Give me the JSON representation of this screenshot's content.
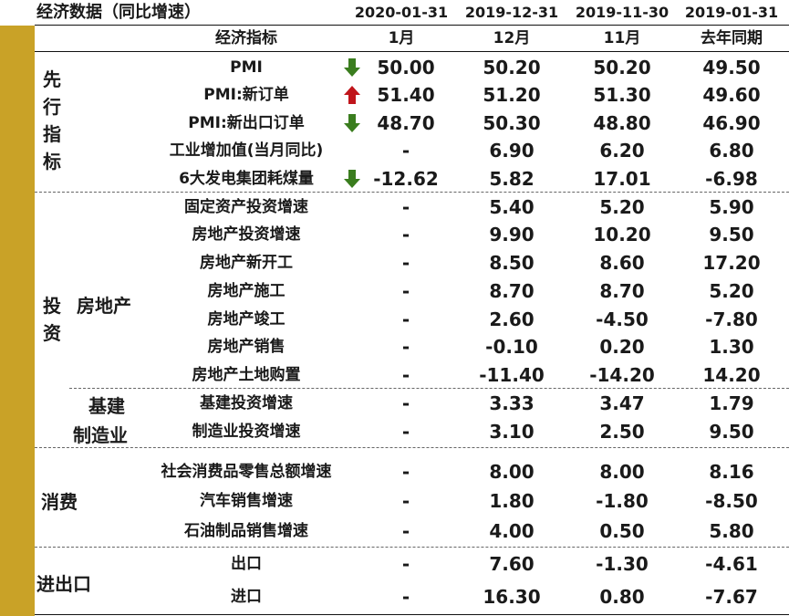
{
  "title": "经济数据（同比增速）",
  "dates": [
    "2020-01-31",
    "2019-12-31",
    "2019-11-30",
    "2019-01-31"
  ],
  "headers": {
    "indicator": "经济指标",
    "c1": "1月",
    "c2": "12月",
    "c3": "11月",
    "c4": "去年同期"
  },
  "categories": {
    "leading": [
      "先",
      "行",
      "指",
      "标"
    ],
    "investment": [
      "投",
      "资"
    ],
    "real_estate": "房地产",
    "infra_1": "基建",
    "infra_2": "制造业",
    "consumption": "消费",
    "trade": "进出口"
  },
  "colors": {
    "gold": "#c9a227",
    "arrow_down": "#3a7d1e",
    "arrow_up": "#c0151b"
  },
  "rows": [
    {
      "name": "PMI",
      "arrow": "down",
      "c1": "50.00",
      "c2": "50.20",
      "c3": "50.20",
      "c4": "49.50"
    },
    {
      "name": "PMI:新订单",
      "arrow": "up",
      "c1": "51.40",
      "c2": "51.20",
      "c3": "51.30",
      "c4": "49.60"
    },
    {
      "name": "PMI:新出口订单",
      "arrow": "down",
      "c1": "48.70",
      "c2": "50.30",
      "c3": "48.80",
      "c4": "46.90"
    },
    {
      "name": "工业增加值(当月同比)",
      "arrow": "",
      "c1": "-",
      "c2": "6.90",
      "c3": "6.20",
      "c4": "6.80"
    },
    {
      "name": "6大发电集团耗煤量",
      "arrow": "down",
      "c1": "-12.62",
      "c2": "5.82",
      "c3": "17.01",
      "c4": "-6.98"
    },
    {
      "name": "固定资产投资增速",
      "arrow": "",
      "c1": "-",
      "c2": "5.40",
      "c3": "5.20",
      "c4": "5.90"
    },
    {
      "name": "房地产投资增速",
      "arrow": "",
      "c1": "-",
      "c2": "9.90",
      "c3": "10.20",
      "c4": "9.50"
    },
    {
      "name": "房地产新开工",
      "arrow": "",
      "c1": "-",
      "c2": "8.50",
      "c3": "8.60",
      "c4": "17.20"
    },
    {
      "name": "房地产施工",
      "arrow": "",
      "c1": "-",
      "c2": "8.70",
      "c3": "8.70",
      "c4": "5.20"
    },
    {
      "name": "房地产竣工",
      "arrow": "",
      "c1": "-",
      "c2": "2.60",
      "c3": "-4.50",
      "c4": "-7.80"
    },
    {
      "name": "房地产销售",
      "arrow": "",
      "c1": "-",
      "c2": "-0.10",
      "c3": "0.20",
      "c4": "1.30"
    },
    {
      "name": "房地产土地购置",
      "arrow": "",
      "c1": "-",
      "c2": "-11.40",
      "c3": "-14.20",
      "c4": "14.20"
    },
    {
      "name": "基建投资增速",
      "arrow": "",
      "c1": "-",
      "c2": "3.33",
      "c3": "3.47",
      "c4": "1.79"
    },
    {
      "name": "制造业投资增速",
      "arrow": "",
      "c1": "-",
      "c2": "3.10",
      "c3": "2.50",
      "c4": "9.50"
    },
    {
      "name": "社会消费品零售总额增速",
      "arrow": "",
      "c1": "-",
      "c2": "8.00",
      "c3": "8.00",
      "c4": "8.16"
    },
    {
      "name": "汽车销售增速",
      "arrow": "",
      "c1": "-",
      "c2": "1.80",
      "c3": "-1.80",
      "c4": "-8.50"
    },
    {
      "name": "石油制品销售增速",
      "arrow": "",
      "c1": "-",
      "c2": "4.00",
      "c3": "0.50",
      "c4": "5.80"
    },
    {
      "name": "出口",
      "arrow": "",
      "c1": "-",
      "c2": "7.60",
      "c3": "-1.30",
      "c4": "-4.61"
    },
    {
      "name": "进口",
      "arrow": "",
      "c1": "-",
      "c2": "16.30",
      "c3": "0.80",
      "c4": "-7.67"
    }
  ]
}
